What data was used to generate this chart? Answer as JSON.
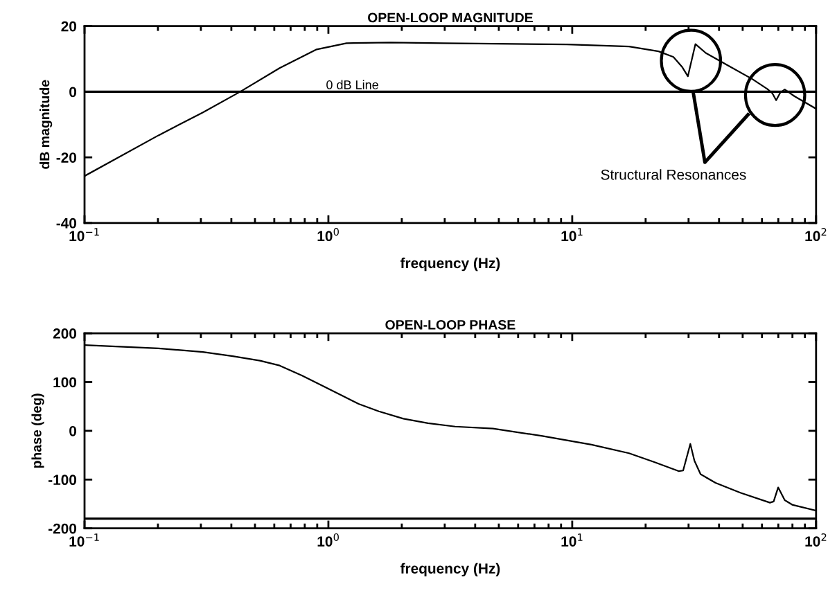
{
  "chart_data": [
    {
      "type": "line",
      "title": "OPEN-LOOP MAGNITUDE",
      "xlabel": "frequency (Hz)",
      "ylabel": "dB magnitude",
      "log": "x",
      "grid": false,
      "xlim": [
        0.1,
        100
      ],
      "xticks": [
        {
          "value": 0.1,
          "label": "10$^{−1}$"
        },
        {
          "value": 1,
          "label": "10$^{0}$"
        },
        {
          "value": 10,
          "label": "10$^{1}$"
        },
        {
          "value": 100,
          "label": "10$^{2}$"
        }
      ],
      "ylim": [
        -40,
        20
      ],
      "yticks": [
        -40,
        -20,
        0,
        20
      ],
      "series": [
        {
          "color": "#000000",
          "x": [
            0.1,
            0.201,
            0.306,
            0.435,
            0.631,
            0.895,
            1.186,
            1.8,
            2.96,
            9.5,
            17.1,
            22.6,
            26.0,
            28.2,
            29.8,
            32.0,
            35.3,
            43.5,
            54.9,
            63.2,
            66.2,
            68.6,
            71.3,
            74.4,
            81.6,
            100
          ],
          "values": [
            -25.7,
            -13.3,
            -6.3,
            0,
            7.2,
            12.9,
            14.8,
            15.0,
            14.8,
            14.4,
            13.8,
            12.3,
            10.6,
            7.6,
            4.7,
            14.5,
            11.8,
            8.0,
            3.8,
            0.8,
            -0.5,
            -2.6,
            -0.3,
            0.7,
            -1.4,
            -5.2
          ]
        }
      ],
      "ref_lines": [
        {
          "axis": "y",
          "value": 0,
          "label": "0 dB Line"
        }
      ],
      "annotations": [
        "Structural Resonances"
      ]
    },
    {
      "type": "line",
      "title": "OPEN-LOOP PHASE",
      "xlabel": "frequency (Hz)",
      "ylabel": "phase (deg)",
      "log": "x",
      "grid": false,
      "xlim": [
        0.1,
        100
      ],
      "xticks": [
        {
          "value": 0.1,
          "label": "10$^{−1}$"
        },
        {
          "value": 1,
          "label": "10$^{0}$"
        },
        {
          "value": 10,
          "label": "10$^{1}$"
        },
        {
          "value": 100,
          "label": "10$^{2}$"
        }
      ],
      "ylim": [
        -200,
        200
      ],
      "yticks": [
        -200,
        -100,
        0,
        100,
        200
      ],
      "series": [
        {
          "color": "#000000",
          "x": [
            0.1,
            0.201,
            0.306,
            0.405,
            0.524,
            0.631,
            0.778,
            0.938,
            1.13,
            1.33,
            1.61,
            2.03,
            2.56,
            3.31,
            4.73,
            7.55,
            12.0,
            17.1,
            21.6,
            27.3,
            28.5,
            30.5,
            31.7,
            33.6,
            38.7,
            48.9,
            64.7,
            67,
            69.9,
            74.4,
            79.8,
            100
          ],
          "values": [
            175.7,
            169,
            161.6,
            153,
            143.8,
            133.8,
            113.5,
            93.2,
            72.9,
            55.2,
            40,
            24.8,
            15.7,
            8.7,
            4.5,
            -10.6,
            -28.4,
            -46,
            -63.8,
            -82.6,
            -81.5,
            -26.8,
            -61.3,
            -89,
            -106.8,
            -127,
            -147.4,
            -144.8,
            -116,
            -142.3,
            -151.5,
            -163.5
          ]
        }
      ],
      "ref_lines": [
        {
          "axis": "y",
          "value": -180
        }
      ]
    }
  ]
}
